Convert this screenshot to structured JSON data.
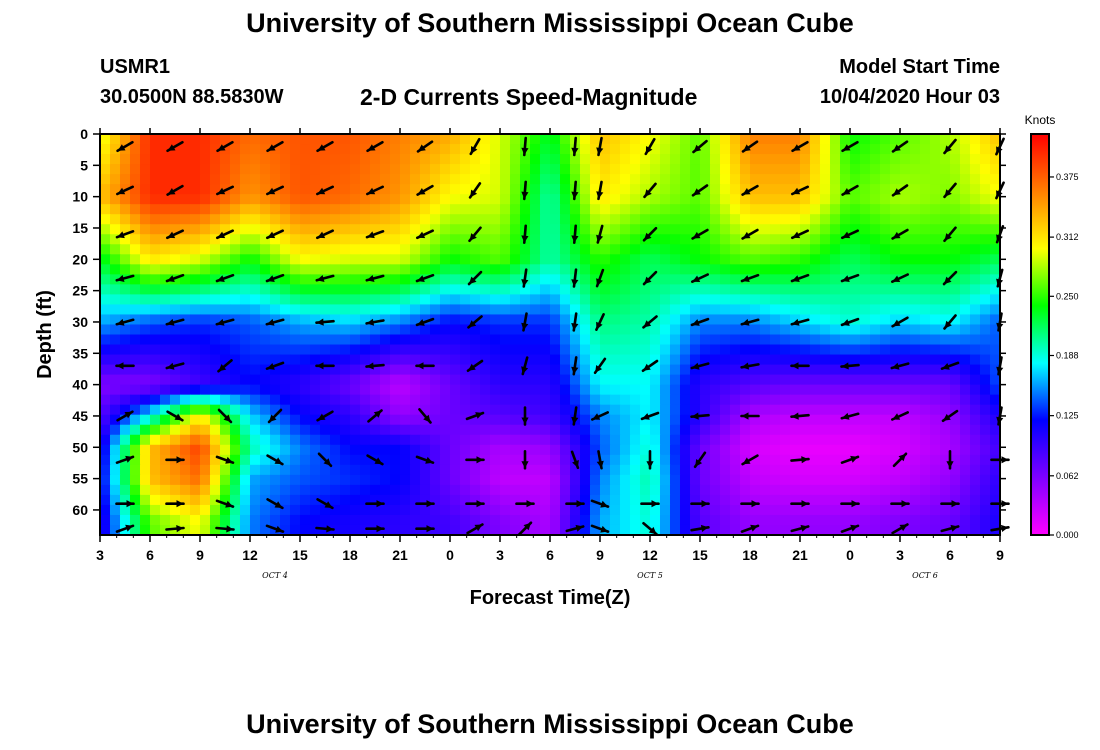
{
  "header": {
    "title_top": "University of Southern Mississippi Ocean Cube",
    "title_bottom": "University of Southern Mississippi Ocean Cube",
    "station_id": "USMR1",
    "station_coords": "30.0500N 88.5830W",
    "product": "2-D Currents Speed-Magnitude",
    "model_start_label": "Model Start Time",
    "model_start_value": "10/04/2020 Hour 03"
  },
  "chart_data": {
    "type": "heatmap",
    "title": "2-D Currents Speed-Magnitude",
    "xlabel": "Forecast Time(Z)",
    "ylabel": "Depth (ft)",
    "x_ticks": [
      "3",
      "6",
      "9",
      "12",
      "15",
      "18",
      "21",
      "0",
      "3",
      "6",
      "9",
      "12",
      "15",
      "18",
      "21",
      "0",
      "3",
      "6",
      "9"
    ],
    "x_hours_range": [
      0,
      54
    ],
    "date_labels": [
      {
        "text": "OCT 4",
        "hour": 10.5
      },
      {
        "text": "OCT 5",
        "hour": 33
      },
      {
        "text": "OCT 6",
        "hour": 49.5
      }
    ],
    "y_ticks": [
      0,
      5,
      10,
      15,
      20,
      25,
      30,
      35,
      40,
      45,
      50,
      55,
      60
    ],
    "y_range": [
      0,
      64
    ],
    "colorbar": {
      "unit": "Knots",
      "min": 0.0,
      "max": 0.42,
      "ticks": [
        "0.000",
        "0.062",
        "0.125",
        "0.188",
        "0.250",
        "0.312",
        "0.375"
      ],
      "colors": [
        "#ff00ff",
        "#7f00ff",
        "#0000ff",
        "#00ffff",
        "#00ff00",
        "#ffff00",
        "#ff7f00",
        "#ff0000"
      ]
    },
    "speed_field": {
      "columns_hours": [
        0,
        3,
        6,
        9,
        12,
        15,
        18,
        21,
        24,
        27,
        30,
        33,
        36,
        39,
        42,
        45,
        48,
        51,
        54
      ],
      "depth_rows_ft": [
        0,
        10,
        20,
        30,
        40,
        45,
        50,
        55,
        62
      ],
      "rows": [
        [
          0.29,
          0.4,
          0.4,
          0.37,
          0.38,
          0.38,
          0.36,
          0.34,
          0.29,
          0.23,
          0.33,
          0.3,
          0.26,
          0.36,
          0.36,
          0.24,
          0.26,
          0.28,
          0.33
        ],
        [
          0.33,
          0.4,
          0.4,
          0.35,
          0.38,
          0.37,
          0.35,
          0.3,
          0.29,
          0.2,
          0.31,
          0.28,
          0.26,
          0.33,
          0.33,
          0.26,
          0.28,
          0.27,
          0.3
        ],
        [
          0.23,
          0.31,
          0.29,
          0.24,
          0.3,
          0.29,
          0.29,
          0.24,
          0.26,
          0.2,
          0.25,
          0.22,
          0.24,
          0.26,
          0.25,
          0.22,
          0.24,
          0.24,
          0.22
        ],
        [
          0.16,
          0.14,
          0.13,
          0.14,
          0.16,
          0.17,
          0.15,
          0.12,
          0.13,
          0.13,
          0.21,
          0.2,
          0.15,
          0.15,
          0.17,
          0.19,
          0.17,
          0.18,
          0.14
        ],
        [
          0.06,
          0.06,
          0.09,
          0.12,
          0.1,
          0.07,
          0.03,
          0.07,
          0.1,
          0.1,
          0.18,
          0.18,
          0.1,
          0.08,
          0.07,
          0.07,
          0.07,
          0.07,
          0.14
        ],
        [
          0.08,
          0.18,
          0.31,
          0.17,
          0.12,
          0.1,
          0.05,
          0.07,
          0.08,
          0.09,
          0.15,
          0.18,
          0.1,
          0.04,
          0.03,
          0.03,
          0.03,
          0.05,
          0.11
        ],
        [
          0.1,
          0.33,
          0.39,
          0.2,
          0.15,
          0.12,
          0.12,
          0.07,
          0.04,
          0.05,
          0.14,
          0.19,
          0.07,
          0.02,
          0.01,
          0.01,
          0.02,
          0.04,
          0.09
        ],
        [
          0.11,
          0.33,
          0.37,
          0.16,
          0.14,
          0.13,
          0.12,
          0.07,
          0.03,
          0.03,
          0.15,
          0.2,
          0.07,
          0.03,
          0.02,
          0.02,
          0.03,
          0.05,
          0.1
        ],
        [
          0.1,
          0.26,
          0.3,
          0.15,
          0.12,
          0.11,
          0.1,
          0.09,
          0.06,
          0.04,
          0.16,
          0.19,
          0.08,
          0.05,
          0.05,
          0.05,
          0.06,
          0.07,
          0.11
        ]
      ]
    },
    "current_vectors": {
      "times_hours": [
        1.5,
        4.5,
        7.5,
        10.5,
        13.5,
        16.5,
        19.5,
        22.5,
        25.5,
        28.5,
        30,
        33,
        36,
        39,
        42,
        45,
        48,
        51,
        54
      ],
      "depths_ft": [
        2,
        9,
        16,
        23,
        30,
        37,
        45,
        52,
        59,
        63
      ],
      "angles_deg": [
        [
          210,
          210,
          210,
          210,
          210,
          210,
          215,
          240,
          265,
          265,
          260,
          240,
          220,
          215,
          210,
          210,
          215,
          230,
          245
        ],
        [
          205,
          210,
          205,
          205,
          205,
          205,
          210,
          235,
          265,
          265,
          260,
          230,
          215,
          210,
          205,
          210,
          215,
          230,
          245
        ],
        [
          200,
          205,
          205,
          205,
          205,
          200,
          205,
          230,
          265,
          265,
          255,
          225,
          210,
          210,
          205,
          205,
          210,
          230,
          250
        ],
        [
          195,
          200,
          200,
          200,
          195,
          195,
          200,
          225,
          262,
          263,
          250,
          225,
          205,
          200,
          200,
          200,
          205,
          225,
          255
        ],
        [
          195,
          195,
          195,
          195,
          185,
          190,
          200,
          220,
          260,
          262,
          245,
          220,
          200,
          195,
          195,
          200,
          210,
          230,
          260
        ],
        [
          180,
          195,
          220,
          200,
          180,
          185,
          180,
          215,
          255,
          262,
          235,
          215,
          195,
          190,
          180,
          185,
          195,
          200,
          260
        ],
        [
          30,
          330,
          315,
          225,
          210,
          40,
          310,
          20,
          270,
          262,
          205,
          200,
          185,
          180,
          185,
          195,
          205,
          215,
          260
        ],
        [
          20,
          0,
          340,
          330,
          315,
          330,
          340,
          0,
          270,
          290,
          280,
          270,
          235,
          210,
          5,
          20,
          45,
          270,
          0
        ],
        [
          0,
          0,
          340,
          330,
          330,
          0,
          0,
          0,
          0,
          0,
          340,
          0,
          0,
          0,
          0,
          0,
          0,
          0,
          0
        ],
        [
          20,
          5,
          355,
          340,
          355,
          0,
          0,
          30,
          45,
          15,
          340,
          320,
          10,
          20,
          15,
          20,
          30,
          15,
          10
        ]
      ]
    }
  }
}
